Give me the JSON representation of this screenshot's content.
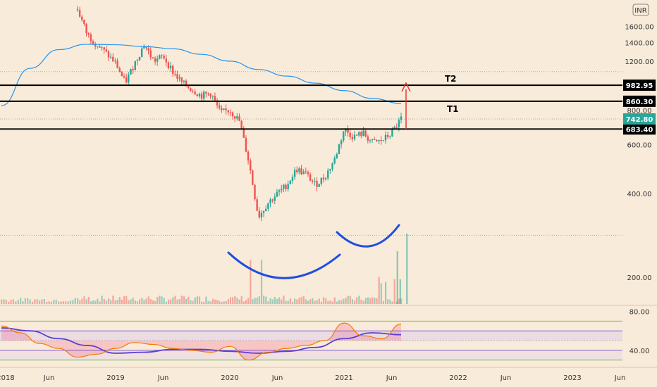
{
  "currency_badge": "INR",
  "chart_data": [
    {
      "type": "candlestick",
      "title": "",
      "ylim": [
        160,
        1880
      ],
      "y_ticks": [
        "1600.00",
        "1400.00",
        "1200.00",
        "800.00",
        "600.00",
        "400.00",
        "200.00"
      ],
      "x_ticks": [
        "2018",
        "Jun",
        "2019",
        "Jun",
        "2020",
        "Jun",
        "2021",
        "Jun",
        "2022",
        "Jun",
        "2023",
        "Jun"
      ],
      "price_levels": [
        {
          "label": "982.95",
          "value": 982.95,
          "name": "T2"
        },
        {
          "label": "860.30",
          "value": 860.3,
          "name": "T1"
        },
        {
          "label": "683.40",
          "value": 683.4,
          "name": ""
        }
      ],
      "last_price": {
        "label": "742.80",
        "value": 742.8,
        "color": "#26a69a"
      },
      "annotations": [
        "T2",
        "T1"
      ],
      "colors": {
        "up": "#26a69a",
        "down": "#ef5350",
        "moving_average": "#2196f3",
        "levels": "#000000",
        "pattern": "#1e4fe0",
        "arrow": "#e53935"
      },
      "price_series": [
        {
          "date": "2018-09",
          "value": 1850
        },
        {
          "date": "2018-10",
          "value": 1500
        },
        {
          "date": "2018-11",
          "value": 1380
        },
        {
          "date": "2018-12",
          "value": 1280
        },
        {
          "date": "2019-01",
          "value": 1180
        },
        {
          "date": "2019-02",
          "value": 1000
        },
        {
          "date": "2019-03",
          "value": 1180
        },
        {
          "date": "2019-04",
          "value": 1380
        },
        {
          "date": "2019-05",
          "value": 1200
        },
        {
          "date": "2019-06",
          "value": 1250
        },
        {
          "date": "2019-07",
          "value": 1100
        },
        {
          "date": "2019-08",
          "value": 1000
        },
        {
          "date": "2019-09",
          "value": 950
        },
        {
          "date": "2019-10",
          "value": 900
        },
        {
          "date": "2019-11",
          "value": 920
        },
        {
          "date": "2019-12",
          "value": 780
        },
        {
          "date": "2020-01",
          "value": 800
        },
        {
          "date": "2020-02",
          "value": 730
        },
        {
          "date": "2020-03",
          "value": 520
        },
        {
          "date": "2020-04",
          "value": 330
        },
        {
          "date": "2020-05",
          "value": 370
        },
        {
          "date": "2020-06",
          "value": 400
        },
        {
          "date": "2020-07",
          "value": 430
        },
        {
          "date": "2020-08",
          "value": 490
        },
        {
          "date": "2020-09",
          "value": 470
        },
        {
          "date": "2020-10",
          "value": 430
        },
        {
          "date": "2020-11",
          "value": 460
        },
        {
          "date": "2020-12",
          "value": 530
        },
        {
          "date": "2021-01",
          "value": 680
        },
        {
          "date": "2021-02",
          "value": 640
        },
        {
          "date": "2021-03",
          "value": 660
        },
        {
          "date": "2021-04",
          "value": 610
        },
        {
          "date": "2021-05",
          "value": 620
        },
        {
          "date": "2021-06",
          "value": 660
        },
        {
          "date": "2021-07",
          "value": 742.8
        }
      ],
      "moving_average": [
        {
          "date": "2018-01",
          "value": 830
        },
        {
          "date": "2018-04",
          "value": 1130
        },
        {
          "date": "2018-07",
          "value": 1320
        },
        {
          "date": "2018-10",
          "value": 1380
        },
        {
          "date": "2019-01",
          "value": 1375
        },
        {
          "date": "2019-04",
          "value": 1355
        },
        {
          "date": "2019-07",
          "value": 1330
        },
        {
          "date": "2019-10",
          "value": 1270
        },
        {
          "date": "2020-01",
          "value": 1200
        },
        {
          "date": "2020-04",
          "value": 1120
        },
        {
          "date": "2020-07",
          "value": 1060
        },
        {
          "date": "2020-10",
          "value": 1000
        },
        {
          "date": "2021-01",
          "value": 940
        },
        {
          "date": "2021-04",
          "value": 880
        },
        {
          "date": "2021-07",
          "value": 845
        }
      ]
    },
    {
      "type": "line",
      "title": "",
      "ylim": [
        24,
        84
      ],
      "y_ticks": [
        "80.00",
        "40.00"
      ],
      "levels": [
        70,
        60,
        50,
        40,
        30
      ],
      "series": [
        {
          "color": "#f57c00",
          "values": [
            {
              "date": "2018-01",
              "value": 65
            },
            {
              "date": "2018-03",
              "value": 58
            },
            {
              "date": "2018-05",
              "value": 47
            },
            {
              "date": "2018-07",
              "value": 42
            },
            {
              "date": "2018-09",
              "value": 33
            },
            {
              "date": "2018-11",
              "value": 36
            },
            {
              "date": "2019-01",
              "value": 42
            },
            {
              "date": "2019-03",
              "value": 48
            },
            {
              "date": "2019-05",
              "value": 46
            },
            {
              "date": "2019-07",
              "value": 42
            },
            {
              "date": "2019-09",
              "value": 40
            },
            {
              "date": "2019-11",
              "value": 38
            },
            {
              "date": "2020-01",
              "value": 44
            },
            {
              "date": "2020-03",
              "value": 30
            },
            {
              "date": "2020-05",
              "value": 38
            },
            {
              "date": "2020-07",
              "value": 42
            },
            {
              "date": "2020-09",
              "value": 45
            },
            {
              "date": "2020-11",
              "value": 50
            },
            {
              "date": "2021-01",
              "value": 68
            },
            {
              "date": "2021-03",
              "value": 55
            },
            {
              "date": "2021-05",
              "value": 52
            },
            {
              "date": "2021-07",
              "value": 67
            }
          ]
        },
        {
          "color": "#5b3fd1",
          "values": [
            {
              "date": "2018-01",
              "value": 63
            },
            {
              "date": "2018-04",
              "value": 60
            },
            {
              "date": "2018-07",
              "value": 52
            },
            {
              "date": "2018-10",
              "value": 45
            },
            {
              "date": "2019-01",
              "value": 37
            },
            {
              "date": "2019-04",
              "value": 38
            },
            {
              "date": "2019-07",
              "value": 41
            },
            {
              "date": "2019-10",
              "value": 41
            },
            {
              "date": "2020-01",
              "value": 39
            },
            {
              "date": "2020-04",
              "value": 37
            },
            {
              "date": "2020-07",
              "value": 39
            },
            {
              "date": "2020-10",
              "value": 43
            },
            {
              "date": "2021-01",
              "value": 52
            },
            {
              "date": "2021-04",
              "value": 58
            },
            {
              "date": "2021-07",
              "value": 56
            }
          ]
        }
      ]
    }
  ]
}
